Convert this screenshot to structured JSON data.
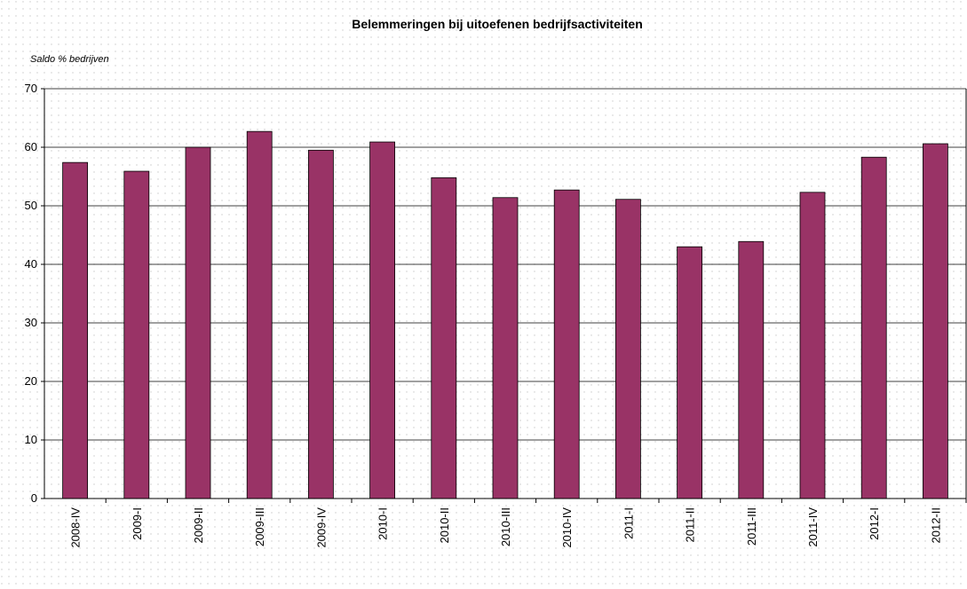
{
  "chart_data": {
    "type": "bar",
    "title": "Belemmeringen bij uitoefenen bedrijfsactiviteiten",
    "y_label": "Saldo % bedrijven",
    "categories": [
      "2008-IV",
      "2009-I",
      "2009-II",
      "2009-III",
      "2009-IV",
      "2010-I",
      "2010-II",
      "2010-III",
      "2010-IV",
      "2011-I",
      "2011-II",
      "2011-III",
      "2011-IV",
      "2012-I",
      "2012-II"
    ],
    "values": [
      57.4,
      55.9,
      60,
      62.7,
      59.5,
      60.9,
      54.8,
      51.4,
      52.7,
      51.1,
      43,
      43.9,
      52.3,
      58.3,
      60.6
    ],
    "color": "#993366",
    "ylim": [
      0,
      70
    ],
    "yticks": [
      0,
      10,
      20,
      30,
      40,
      50,
      60,
      70
    ],
    "grid": true
  }
}
